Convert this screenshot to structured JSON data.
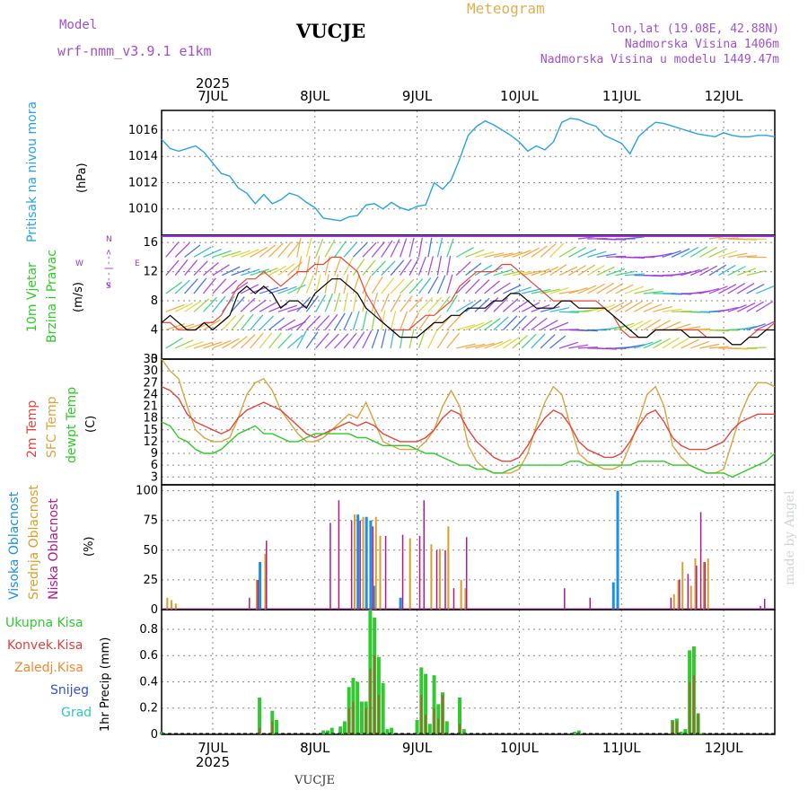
{
  "header": {
    "model_label": "Model",
    "model_name": "wrf-nmm_v3.9.1  e1km",
    "station": "VUCJE",
    "product": "Meteogram",
    "coords": "lon,lat (19.08E, 42.88N)",
    "altitude": "Nadmorska Visina 1406m",
    "model_altitude": "Nadmorska Visina u modelu 1449.47m"
  },
  "footer": {
    "station": "VUCJE",
    "watermark": "made by Angel"
  },
  "year": "2025",
  "days": [
    "7JUL",
    "8JUL",
    "9JUL",
    "10JUL",
    "11JUL",
    "12JUL"
  ],
  "colors": {
    "pressure": "#29a3e6",
    "temp2m": "#e6453a",
    "sfc": "#d9a441",
    "dew": "#2ecc28",
    "high_cloud": "#1e90e0",
    "mid_cloud": "#d8a02a",
    "low_cloud": "#b01a8a",
    "total_precip": "#32c832",
    "conv_precip": "#e04040",
    "frozen_precip": "#f08a30",
    "snow": "#3050e0",
    "hail": "#30c8c8",
    "wind_purple": "#9b30e0"
  },
  "panels": {
    "pressure": {
      "title": "Pritisak na nivou mora",
      "unit": "(hPa)"
    },
    "wind": {
      "title1": "10m Vjetar",
      "title2": "Brzina i Pravac",
      "unit": "(m/s)",
      "compass": {
        "n": "N",
        "s": "S",
        "e": "E",
        "w": "W",
        "arrows": "<--|-->"
      }
    },
    "temp": {
      "label_2m": "2m Temp",
      "label_sfc": "SFC Temp",
      "label_dew": "dewpt Temp",
      "unit": "(C)"
    },
    "cloud": {
      "label_high": "Visoka Oblacnost",
      "label_mid": "Srednja Oblacnost",
      "label_low": "Niska Oblacnost",
      "unit": "(%)"
    },
    "precip": {
      "label_total": "Ukupna Kisa",
      "label_conv": "Konvek.Kisa",
      "label_frozen": "Zaledj.Kisa",
      "label_snow": "Snijeg",
      "label_hail": "Grad",
      "unit": "1hr Precip (mm)"
    }
  },
  "chart_data": [
    {
      "type": "line",
      "name": "pressure",
      "xlabel": "",
      "ylabel": "Pritisak na nivou mora (hPa)",
      "x_range_hours": [
        0,
        144
      ],
      "ylim": [
        1008,
        1017.5
      ],
      "yticks": [
        1010,
        1012,
        1014,
        1016
      ],
      "x": [
        0,
        2,
        4,
        6,
        8,
        10,
        12,
        14,
        16,
        18,
        20,
        22,
        24,
        26,
        28,
        30,
        32,
        34,
        36,
        38,
        40,
        42,
        44,
        46,
        48,
        50,
        52,
        54,
        56,
        58,
        60,
        62,
        64,
        66,
        68,
        70,
        72,
        74,
        76,
        78,
        80,
        82,
        84,
        86,
        88,
        90,
        92,
        94,
        96,
        98,
        100,
        102,
        104,
        106,
        108,
        110,
        112,
        114,
        116,
        118,
        120,
        122,
        124,
        126,
        128,
        130,
        132,
        134,
        136,
        138,
        140,
        142,
        144
      ],
      "series": [
        {
          "values": [
            1015.3,
            1014.6,
            1014.4,
            1014.6,
            1014.8,
            1014.3,
            1013.5,
            1012.7,
            1012.5,
            1011.6,
            1011.2,
            1010.4,
            1011.1,
            1010.4,
            1010.7,
            1011.2,
            1011.0,
            1010.5,
            1010.1,
            1009.3,
            1009.2,
            1009.1,
            1009.4,
            1009.5,
            1010.3,
            1010.4,
            1010.0,
            1010.5,
            1010.1,
            1009.9,
            1010.2,
            1010.3,
            1012.0,
            1011.5,
            1012.2,
            1013.8,
            1015.6,
            1016.3,
            1016.7,
            1016.4,
            1016.0,
            1015.6,
            1015.1,
            1014.4,
            1014.8,
            1014.5,
            1015.1,
            1016.6,
            1016.9,
            1016.8,
            1016.5,
            1016.3,
            1015.6,
            1015.3,
            1015.0,
            1014.2,
            1015.5,
            1016.1,
            1016.6,
            1016.5,
            1016.3,
            1016.1,
            1015.9,
            1015.7,
            1015.6,
            1015.5,
            1015.8,
            1015.6,
            1015.5,
            1015.5,
            1015.6,
            1015.6,
            1015.5
          ]
        }
      ]
    },
    {
      "type": "line",
      "name": "wind",
      "ylabel": "10m Vjetar Brzina i Pravac (m/s)",
      "x_range_hours": [
        0,
        144
      ],
      "ylim": [
        0,
        17
      ],
      "yticks": [
        0,
        4,
        8,
        12,
        16
      ],
      "x": [
        0,
        2,
        4,
        6,
        8,
        10,
        12,
        14,
        16,
        18,
        20,
        22,
        24,
        26,
        28,
        30,
        32,
        34,
        36,
        38,
        40,
        42,
        44,
        46,
        48,
        50,
        52,
        54,
        56,
        58,
        60,
        62,
        64,
        66,
        68,
        70,
        72,
        74,
        76,
        78,
        80,
        82,
        84,
        86,
        88,
        90,
        92,
        94,
        96,
        98,
        100,
        102,
        104,
        106,
        108,
        110,
        112,
        114,
        116,
        118,
        120,
        122,
        124,
        126,
        128,
        130,
        132,
        134,
        136,
        138,
        140,
        142,
        144
      ],
      "series": [
        {
          "values": [
            5,
            6,
            5,
            4,
            4,
            5,
            4,
            5,
            6,
            9,
            10,
            9,
            10,
            9,
            7,
            8,
            8,
            7,
            9,
            10,
            11,
            11,
            10,
            9,
            7,
            6,
            5,
            4,
            3,
            3,
            3,
            4,
            5,
            5,
            6,
            6,
            7,
            7,
            7,
            8,
            8,
            9,
            9,
            8,
            7,
            7,
            7,
            8,
            8,
            7,
            7,
            7,
            7,
            6,
            5,
            4,
            3,
            3,
            4,
            4,
            4,
            4,
            3,
            3,
            3,
            3,
            3,
            2,
            2,
            3,
            3,
            4,
            4
          ]
        },
        {
          "values": [
            5,
            5,
            4,
            4,
            4,
            5,
            5,
            6,
            8,
            10,
            11,
            11,
            12,
            11,
            10,
            11,
            12,
            12,
            13,
            13,
            14,
            14,
            13,
            12,
            9,
            7,
            5,
            4,
            4,
            4,
            5,
            6,
            6,
            7,
            8,
            10,
            11,
            12,
            12,
            12,
            13,
            13,
            12,
            11,
            10,
            9,
            8,
            8,
            8,
            8,
            8,
            8,
            7,
            6,
            4,
            3,
            3,
            3,
            4,
            4,
            4,
            4,
            4,
            4,
            3,
            3,
            3,
            2,
            2,
            3,
            4,
            4,
            5
          ]
        }
      ]
    },
    {
      "type": "line",
      "name": "temperature",
      "ylabel": "(C)",
      "x_range_hours": [
        0,
        144
      ],
      "ylim": [
        1,
        33
      ],
      "yticks": [
        3,
        6,
        9,
        12,
        15,
        18,
        21,
        24,
        27,
        30,
        33
      ],
      "x": [
        0,
        2,
        4,
        6,
        8,
        10,
        12,
        14,
        16,
        18,
        20,
        22,
        24,
        26,
        28,
        30,
        32,
        34,
        36,
        38,
        40,
        42,
        44,
        46,
        48,
        50,
        52,
        54,
        56,
        58,
        60,
        62,
        64,
        66,
        68,
        70,
        72,
        74,
        76,
        78,
        80,
        82,
        84,
        86,
        88,
        90,
        92,
        94,
        96,
        98,
        100,
        102,
        104,
        106,
        108,
        110,
        112,
        114,
        116,
        118,
        120,
        122,
        124,
        126,
        128,
        130,
        132,
        134,
        136,
        138,
        140,
        142,
        144
      ],
      "series": [
        {
          "name": "2m Temp",
          "values": [
            26,
            25,
            23,
            19,
            17,
            16,
            15,
            14,
            15,
            18,
            20,
            21,
            22,
            21,
            20,
            18,
            16,
            14,
            13,
            14,
            15,
            16,
            17,
            16,
            17,
            16,
            14,
            13,
            12,
            12,
            12,
            13,
            15,
            18,
            20,
            19,
            15,
            12,
            10,
            8,
            7,
            7,
            8,
            11,
            15,
            18,
            20,
            19,
            16,
            12,
            10,
            9,
            8,
            8,
            9,
            12,
            16,
            19,
            20,
            17,
            13,
            11,
            10,
            10,
            10,
            11,
            12,
            15,
            17,
            18,
            19,
            19,
            19
          ]
        },
        {
          "name": "SFC Temp",
          "values": [
            33,
            30,
            28,
            21,
            15,
            13,
            12,
            12,
            13,
            18,
            24,
            27,
            28,
            25,
            20,
            17,
            14,
            12,
            12,
            13,
            15,
            17,
            19,
            18,
            22,
            17,
            12,
            11,
            10,
            10,
            10,
            12,
            15,
            21,
            25,
            21,
            11,
            7,
            5,
            4,
            4,
            4,
            5,
            9,
            16,
            22,
            26,
            24,
            16,
            9,
            7,
            6,
            5,
            5,
            6,
            11,
            17,
            24,
            26,
            21,
            11,
            8,
            6,
            5,
            4,
            4,
            5,
            12,
            19,
            24,
            27,
            27,
            26
          ]
        },
        {
          "name": "dewpt Temp",
          "values": [
            17,
            16,
            13,
            12,
            10,
            9,
            9,
            10,
            12,
            14,
            15,
            16,
            14,
            14,
            13,
            12,
            12,
            13,
            14,
            14,
            14,
            14,
            14,
            13,
            13,
            12,
            11,
            11,
            11,
            11,
            10,
            9,
            9,
            8,
            7,
            6,
            6,
            5,
            5,
            4,
            4,
            5,
            6,
            6,
            6,
            6,
            6,
            6,
            7,
            7,
            6,
            6,
            6,
            6,
            6,
            6,
            7,
            7,
            7,
            7,
            6,
            6,
            6,
            5,
            4,
            4,
            4,
            3,
            4,
            5,
            6,
            7,
            9
          ]
        }
      ]
    },
    {
      "type": "bar",
      "name": "cloud",
      "ylabel": "(%)",
      "x_range_hours": [
        0,
        144
      ],
      "ylim": [
        0,
        105
      ],
      "yticks": [
        0,
        25,
        50,
        75,
        100
      ],
      "series": [
        {
          "name": "Visoka Oblacnost",
          "hours": [
            23,
            46,
            48,
            49,
            50,
            56,
            106,
            107
          ],
          "values": [
            40,
            80,
            78,
            75,
            20,
            10,
            23,
            100
          ]
        },
        {
          "name": "Srednja Oblacnost",
          "hours": [
            1,
            2,
            3,
            24,
            22,
            45,
            47,
            50,
            51,
            58,
            63,
            65,
            67,
            70,
            71,
            120,
            121,
            122,
            124,
            125,
            127,
            128
          ],
          "values": [
            10,
            8,
            5,
            47,
            25,
            80,
            78,
            78,
            62,
            60,
            55,
            51,
            70,
            25,
            18,
            13,
            25,
            40,
            20,
            43,
            40,
            43
          ]
        },
        {
          "name": "Niska Oblacnost",
          "hours": [
            20,
            22,
            24,
            39,
            41,
            44,
            46,
            49,
            52,
            56,
            60,
            61,
            64,
            66,
            68,
            71,
            94,
            100,
            119,
            121,
            123,
            125,
            126,
            127,
            140,
            141
          ],
          "values": [
            10,
            25,
            58,
            73,
            92,
            75,
            75,
            70,
            62,
            63,
            62,
            92,
            50,
            50,
            18,
            61,
            18,
            10,
            10,
            25,
            30,
            37,
            82,
            40,
            3,
            9
          ]
        }
      ]
    },
    {
      "type": "bar",
      "name": "precipitation",
      "ylabel": "1hr Precip (mm)",
      "x_range_hours": [
        0,
        144
      ],
      "ylim": [
        0,
        0.95
      ],
      "yticks": [
        0,
        0.2,
        0.4,
        0.6,
        0.8
      ],
      "series": [
        {
          "name": "Ukupna Kisa",
          "hours": [
            0,
            23,
            26,
            27,
            38,
            39,
            40,
            42,
            43,
            44,
            45,
            46,
            47,
            48,
            49,
            50,
            51,
            52,
            53,
            54,
            60,
            61,
            62,
            63,
            64,
            65,
            66,
            67,
            70,
            71,
            97,
            98,
            120,
            121,
            122,
            123,
            124,
            125,
            126,
            127
          ],
          "values": [
            0.02,
            0.28,
            0.18,
            0.11,
            0.03,
            0.03,
            0.05,
            0.06,
            0.1,
            0.36,
            0.43,
            0.4,
            0.25,
            0.25,
            0.95,
            0.89,
            0.59,
            0.39,
            0.04,
            0.05,
            0.11,
            0.51,
            0.46,
            0.08,
            0.45,
            0.23,
            0.32,
            0.1,
            0.28,
            0.04,
            0.02,
            0.03,
            0.11,
            0.12,
            0.02,
            0.04,
            0.64,
            0.67,
            0.16,
            0.01
          ]
        },
        {
          "name": "Konvek.Kisa",
          "hours": [
            23,
            26,
            44,
            45,
            48,
            49,
            50,
            51,
            61,
            62,
            64,
            65,
            66,
            70,
            120,
            121,
            124,
            125,
            126
          ],
          "values": [
            0.05,
            0.1,
            0.2,
            0.25,
            0.2,
            0.5,
            0.6,
            0.3,
            0.3,
            0.15,
            0.2,
            0.12,
            0.3,
            0.08,
            0.1,
            0.1,
            0.4,
            0.45,
            0.16
          ]
        },
        {
          "name": "Zaledj.Kisa",
          "hours": [],
          "values": []
        },
        {
          "name": "Snijeg",
          "hours": [],
          "values": []
        },
        {
          "name": "Grad",
          "hours": [],
          "values": []
        }
      ]
    }
  ]
}
